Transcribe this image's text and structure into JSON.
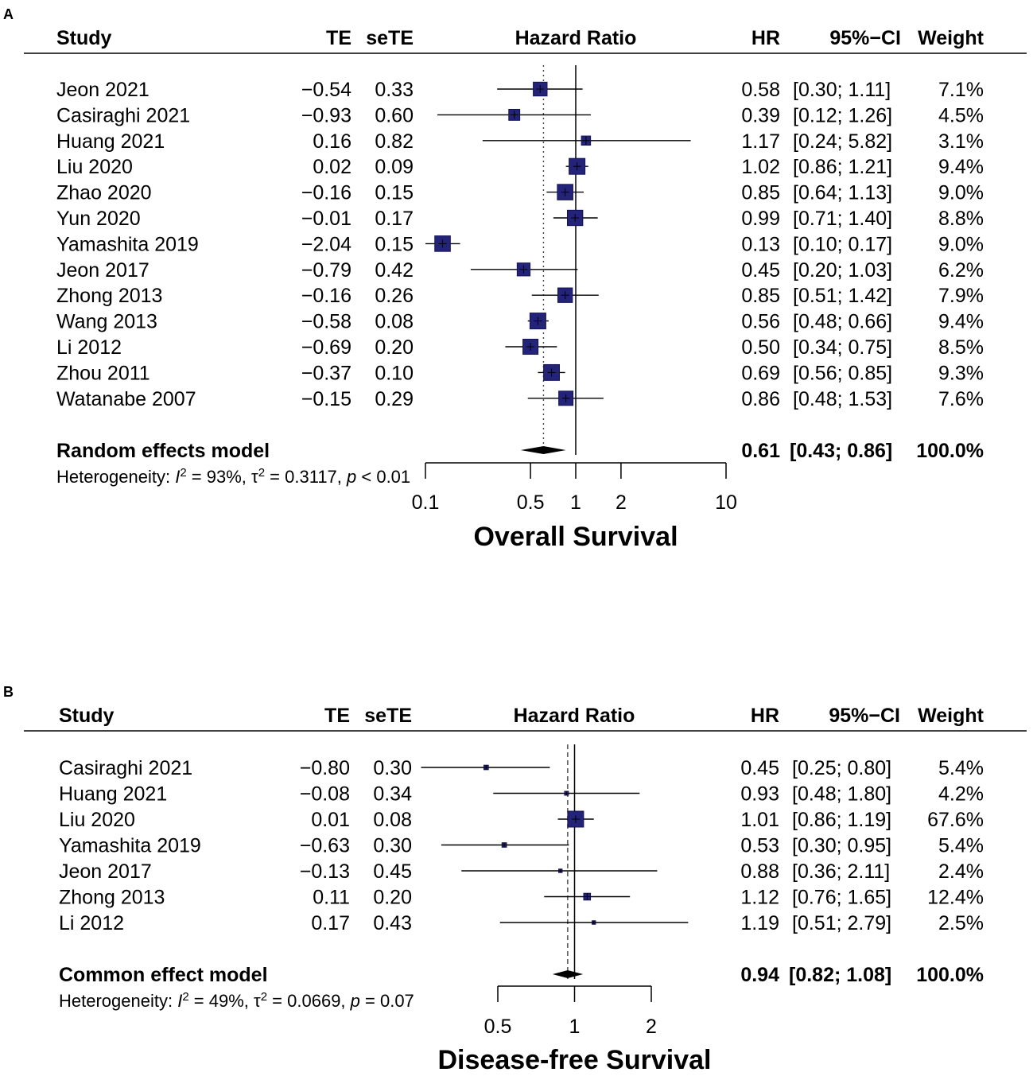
{
  "chart_data": [
    {
      "type": "forest",
      "panel_label": "A",
      "headers": {
        "study": "Study",
        "te": "TE",
        "sete": "seTE",
        "plot": "Hazard Ratio",
        "hr": "HR",
        "ci": "95%−CI",
        "weight": "Weight"
      },
      "studies": [
        {
          "name": "Jeon 2021",
          "te": "−0.54",
          "sete": "0.33",
          "hr_text": "0.58",
          "ci_text": "[0.30; 1.11]",
          "weight_text": "7.1%",
          "hr": 0.58,
          "lo": 0.3,
          "hi": 1.11,
          "w": 7.1
        },
        {
          "name": "Casiraghi 2021",
          "te": "−0.93",
          "sete": "0.60",
          "hr_text": "0.39",
          "ci_text": "[0.12; 1.26]",
          "weight_text": "4.5%",
          "hr": 0.39,
          "lo": 0.12,
          "hi": 1.26,
          "w": 4.5
        },
        {
          "name": "Huang 2021",
          "te": "0.16",
          "sete": "0.82",
          "hr_text": "1.17",
          "ci_text": "[0.24; 5.82]",
          "weight_text": "3.1%",
          "hr": 1.17,
          "lo": 0.24,
          "hi": 5.82,
          "w": 3.1
        },
        {
          "name": "Liu 2020",
          "te": "0.02",
          "sete": "0.09",
          "hr_text": "1.02",
          "ci_text": "[0.86; 1.21]",
          "weight_text": "9.4%",
          "hr": 1.02,
          "lo": 0.86,
          "hi": 1.21,
          "w": 9.4
        },
        {
          "name": "Zhao 2020",
          "te": "−0.16",
          "sete": "0.15",
          "hr_text": "0.85",
          "ci_text": "[0.64; 1.13]",
          "weight_text": "9.0%",
          "hr": 0.85,
          "lo": 0.64,
          "hi": 1.13,
          "w": 9.0
        },
        {
          "name": "Yun 2020",
          "te": "−0.01",
          "sete": "0.17",
          "hr_text": "0.99",
          "ci_text": "[0.71; 1.40]",
          "weight_text": "8.8%",
          "hr": 0.99,
          "lo": 0.71,
          "hi": 1.4,
          "w": 8.8
        },
        {
          "name": "Yamashita 2019",
          "te": "−2.04",
          "sete": "0.15",
          "hr_text": "0.13",
          "ci_text": "[0.10; 0.17]",
          "weight_text": "9.0%",
          "hr": 0.13,
          "lo": 0.1,
          "hi": 0.17,
          "w": 9.0
        },
        {
          "name": "Jeon 2017",
          "te": "−0.79",
          "sete": "0.42",
          "hr_text": "0.45",
          "ci_text": "[0.20; 1.03]",
          "weight_text": "6.2%",
          "hr": 0.45,
          "lo": 0.2,
          "hi": 1.03,
          "w": 6.2
        },
        {
          "name": "Zhong 2013",
          "te": "−0.16",
          "sete": "0.26",
          "hr_text": "0.85",
          "ci_text": "[0.51; 1.42]",
          "weight_text": "7.9%",
          "hr": 0.85,
          "lo": 0.51,
          "hi": 1.42,
          "w": 7.9
        },
        {
          "name": "Wang 2013",
          "te": "−0.58",
          "sete": "0.08",
          "hr_text": "0.56",
          "ci_text": "[0.48; 0.66]",
          "weight_text": "9.4%",
          "hr": 0.56,
          "lo": 0.48,
          "hi": 0.66,
          "w": 9.4
        },
        {
          "name": "Li 2012",
          "te": "−0.69",
          "sete": "0.20",
          "hr_text": "0.50",
          "ci_text": "[0.34; 0.75]",
          "weight_text": "8.5%",
          "hr": 0.5,
          "lo": 0.34,
          "hi": 0.75,
          "w": 8.5
        },
        {
          "name": "Zhou 2011",
          "te": "−0.37",
          "sete": "0.10",
          "hr_text": "0.69",
          "ci_text": "[0.56; 0.85]",
          "weight_text": "9.3%",
          "hr": 0.69,
          "lo": 0.56,
          "hi": 0.85,
          "w": 9.3
        },
        {
          "name": "Watanabe 2007",
          "te": "−0.15",
          "sete": "0.29",
          "hr_text": "0.86",
          "ci_text": "[0.48; 1.53]",
          "weight_text": "7.6%",
          "hr": 0.86,
          "lo": 0.48,
          "hi": 1.53,
          "w": 7.6
        }
      ],
      "summary": {
        "label": "Random effects model",
        "hr_text": "0.61",
        "ci_text": "[0.43; 0.86]",
        "weight_text": "100.0%",
        "hr": 0.61,
        "lo": 0.43,
        "hi": 0.86
      },
      "heterogeneity": {
        "prefix": "Heterogeneity: ",
        "i_symbol": "I",
        "sup": "2",
        "i2": " = 93%, ",
        "tau": "τ",
        "tau2": " = 0.3117, ",
        "p_symbol": "p",
        "p": " < 0.01"
      },
      "axis": {
        "ticks": [
          0.1,
          0.5,
          1,
          2,
          10
        ],
        "tick_labels": [
          "0.1",
          "0.5",
          "1",
          "2",
          "10"
        ],
        "xlim": [
          0.1,
          10
        ],
        "scale": "log",
        "title": "Overall Survival",
        "reference_line": 1,
        "reference_style": "solid",
        "summary_line_style": "dotted"
      }
    },
    {
      "type": "forest",
      "panel_label": "B",
      "headers": {
        "study": "Study",
        "te": "TE",
        "sete": "seTE",
        "plot": "Hazard Ratio",
        "hr": "HR",
        "ci": "95%−CI",
        "weight": "Weight"
      },
      "studies": [
        {
          "name": "Casiraghi 2021",
          "te": "−0.80",
          "sete": "0.30",
          "hr_text": "0.45",
          "ci_text": "[0.25; 0.80]",
          "weight_text": "5.4%",
          "hr": 0.45,
          "lo": 0.25,
          "hi": 0.8,
          "w": 5.4
        },
        {
          "name": "Huang 2021",
          "te": "−0.08",
          "sete": "0.34",
          "hr_text": "0.93",
          "ci_text": "[0.48; 1.80]",
          "weight_text": "4.2%",
          "hr": 0.93,
          "lo": 0.48,
          "hi": 1.8,
          "w": 4.2
        },
        {
          "name": "Liu 2020",
          "te": "0.01",
          "sete": "0.08",
          "hr_text": "1.01",
          "ci_text": "[0.86; 1.19]",
          "weight_text": "67.6%",
          "hr": 1.01,
          "lo": 0.86,
          "hi": 1.19,
          "w": 67.6
        },
        {
          "name": "Yamashita 2019",
          "te": "−0.63",
          "sete": "0.30",
          "hr_text": "0.53",
          "ci_text": "[0.30; 0.95]",
          "weight_text": "5.4%",
          "hr": 0.53,
          "lo": 0.3,
          "hi": 0.95,
          "w": 5.4
        },
        {
          "name": "Jeon 2017",
          "te": "−0.13",
          "sete": "0.45",
          "hr_text": "0.88",
          "ci_text": "[0.36; 2.11]",
          "weight_text": "2.4%",
          "hr": 0.88,
          "lo": 0.36,
          "hi": 2.11,
          "w": 2.4
        },
        {
          "name": "Zhong 2013",
          "te": "0.11",
          "sete": "0.20",
          "hr_text": "1.12",
          "ci_text": "[0.76; 1.65]",
          "weight_text": "12.4%",
          "hr": 1.12,
          "lo": 0.76,
          "hi": 1.65,
          "w": 12.4
        },
        {
          "name": "Li 2012",
          "te": "0.17",
          "sete": "0.43",
          "hr_text": "1.19",
          "ci_text": "[0.51; 2.79]",
          "weight_text": "2.5%",
          "hr": 1.19,
          "lo": 0.51,
          "hi": 2.79,
          "w": 2.5
        }
      ],
      "summary": {
        "label": "Common effect model",
        "hr_text": "0.94",
        "ci_text": "[0.82; 1.08]",
        "weight_text": "100.0%",
        "hr": 0.94,
        "lo": 0.82,
        "hi": 1.08
      },
      "heterogeneity": {
        "prefix": "Heterogeneity: ",
        "i_symbol": "I",
        "sup": "2",
        "i2": " = 49%, ",
        "tau": "τ",
        "tau2": " = 0.0669, ",
        "p_symbol": "p",
        "p": " = 0.07"
      },
      "axis": {
        "ticks": [
          0.5,
          1,
          2
        ],
        "tick_labels": [
          "0.5",
          "1",
          "2"
        ],
        "xlim": [
          0.5,
          2
        ],
        "scale": "log",
        "title": "Disease-free Survival",
        "reference_line": 1,
        "reference_style": "solid",
        "summary_line_style": "dashed"
      }
    }
  ]
}
